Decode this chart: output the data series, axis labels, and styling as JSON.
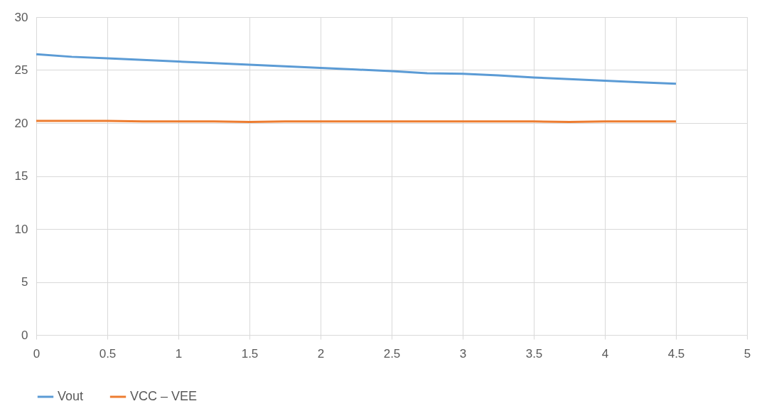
{
  "chart_data": {
    "type": "line",
    "x": [
      0,
      0.25,
      0.5,
      0.75,
      1,
      1.25,
      1.5,
      1.75,
      2,
      2.25,
      2.5,
      2.75,
      3,
      3.25,
      3.5,
      3.75,
      4,
      4.25,
      4.5
    ],
    "series": [
      {
        "name": "Vout",
        "color": "#5b9bd5",
        "values": [
          26.5,
          26.25,
          26.1,
          25.95,
          25.8,
          25.65,
          25.5,
          25.35,
          25.2,
          25.05,
          24.9,
          24.7,
          24.65,
          24.5,
          24.3,
          24.15,
          24.0,
          23.85,
          23.7
        ]
      },
      {
        "name": "VCC – VEE",
        "color": "#ed7d31",
        "values": [
          20.2,
          20.2,
          20.2,
          20.15,
          20.15,
          20.15,
          20.1,
          20.15,
          20.15,
          20.15,
          20.15,
          20.15,
          20.15,
          20.15,
          20.15,
          20.1,
          20.15,
          20.15,
          20.15
        ]
      }
    ],
    "xlim": [
      0,
      5
    ],
    "xticks": [
      0,
      0.5,
      1,
      1.5,
      2,
      2.5,
      3,
      3.5,
      4,
      4.5,
      5
    ],
    "ylim": [
      0,
      30
    ],
    "yticks": [
      0,
      5,
      10,
      15,
      20,
      25,
      30
    ],
    "grid": true,
    "legend": "bottom",
    "marker": "none",
    "line_style": "solid"
  }
}
